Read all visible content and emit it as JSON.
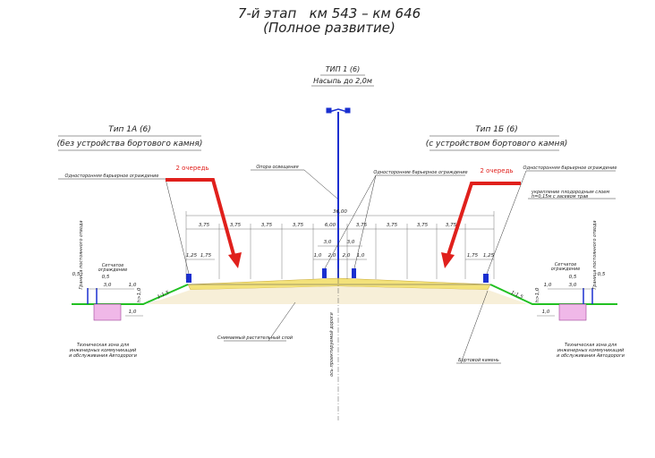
{
  "title": "7-й этап   км 543 – км 646",
  "subtitle": "(Полное развитие)",
  "center": {
    "type": "ТИП 1 (6)",
    "subtitle": "Насыпь до 2,0м"
  },
  "left": {
    "type": "Тип 1А (6)",
    "subtitle": "(без устройства бортового камня)"
  },
  "right": {
    "type": "Тип 1Б (6)",
    "subtitle": "(с устройством бортового камня)"
  },
  "annotations": [
    "Односторонняя барьерное ограждение",
    "2 очередь",
    "Опора освещения",
    "Односторонние барьерное ограждение",
    "2 очередь",
    "Односторонняя барьерное ограждение",
    "укрепление плодородным слоем",
    "h=0,15м с засевом трав",
    "Сетчатое",
    "ограждение",
    "Сетчатое",
    "ограждение",
    "Граница постоянного отвода",
    "Граница постоянного отвода",
    "Техническая зона для",
    "инженерных коммуникаций",
    "и обслуживания Автодороги",
    "Техническая зона для",
    "инженерных коммуникаций",
    "и обслуживания Автодороги",
    "Снимаемый растительный слой",
    "ось проектируемой дороги",
    "Бортовой камень"
  ],
  "dimensions": [
    "36,00",
    "3,75",
    "3,75",
    "3,75",
    "3,75",
    "6,00",
    "3,75",
    "3,75",
    "3,75",
    "3,75",
    "3,0",
    "3,0",
    "1,0",
    "2,0",
    "2,0",
    "1,0",
    "1,25",
    "1,75",
    "1,75",
    "1,25",
    "0,5",
    "0,5",
    "3,0",
    "1,0",
    "h>1,0",
    "1:1,5",
    "1,0",
    "0,5",
    "0,5",
    "3,0",
    "1,0",
    "h>1,0",
    "1:1,5",
    "1,0"
  ]
}
